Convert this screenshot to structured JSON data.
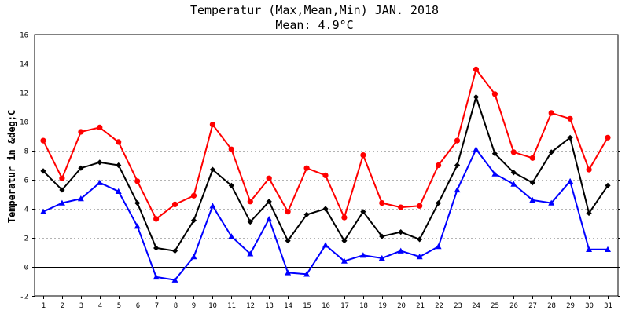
{
  "chart_data": {
    "type": "line",
    "title": "Temperatur (Max,Mean,Min) JAN. 2018",
    "subtitle": "Mean: 4.9°C",
    "xlabel": "",
    "ylabel": "Temperatur in &deg;C",
    "categories": [
      "1",
      "2",
      "3",
      "4",
      "5",
      "6",
      "7",
      "8",
      "9",
      "10",
      "11",
      "12",
      "13",
      "14",
      "15",
      "16",
      "17",
      "18",
      "19",
      "20",
      "21",
      "22",
      "23",
      "24",
      "25",
      "26",
      "27",
      "28",
      "29",
      "30",
      "31"
    ],
    "ylim": [
      -2,
      16
    ],
    "y_ticks": [
      -2,
      0,
      2,
      4,
      6,
      8,
      10,
      12,
      14,
      16
    ],
    "grid": true,
    "legend": "none",
    "series": [
      {
        "role": "max",
        "color": "#ff0000",
        "marker": "circle",
        "values": [
          8.7,
          6.1,
          9.3,
          9.6,
          8.6,
          5.9,
          3.3,
          4.3,
          4.9,
          9.8,
          8.1,
          4.5,
          6.1,
          3.8,
          6.8,
          6.3,
          3.4,
          7.7,
          4.4,
          4.1,
          4.2,
          7.0,
          8.7,
          13.6,
          11.9,
          7.9,
          7.5,
          10.6,
          10.2,
          6.7,
          8.9
        ]
      },
      {
        "role": "mean",
        "color": "#000000",
        "marker": "diamond",
        "values": [
          6.6,
          5.3,
          6.8,
          7.2,
          7.0,
          4.4,
          1.3,
          1.1,
          3.2,
          6.7,
          5.6,
          3.1,
          4.5,
          1.8,
          3.6,
          4.0,
          1.8,
          3.8,
          2.1,
          2.4,
          1.9,
          4.4,
          7.0,
          11.7,
          7.8,
          6.5,
          5.8,
          7.9,
          8.9,
          3.7,
          5.6
        ]
      },
      {
        "role": "min",
        "color": "#0000ff",
        "marker": "triangle",
        "values": [
          3.8,
          4.4,
          4.7,
          5.8,
          5.2,
          2.8,
          -0.7,
          -0.9,
          0.7,
          4.2,
          2.1,
          0.9,
          3.3,
          -0.4,
          -0.5,
          1.5,
          0.4,
          0.8,
          0.6,
          1.1,
          0.7,
          1.4,
          5.3,
          8.1,
          6.4,
          5.7,
          4.6,
          4.4,
          5.9,
          1.2,
          1.2
        ]
      }
    ]
  }
}
